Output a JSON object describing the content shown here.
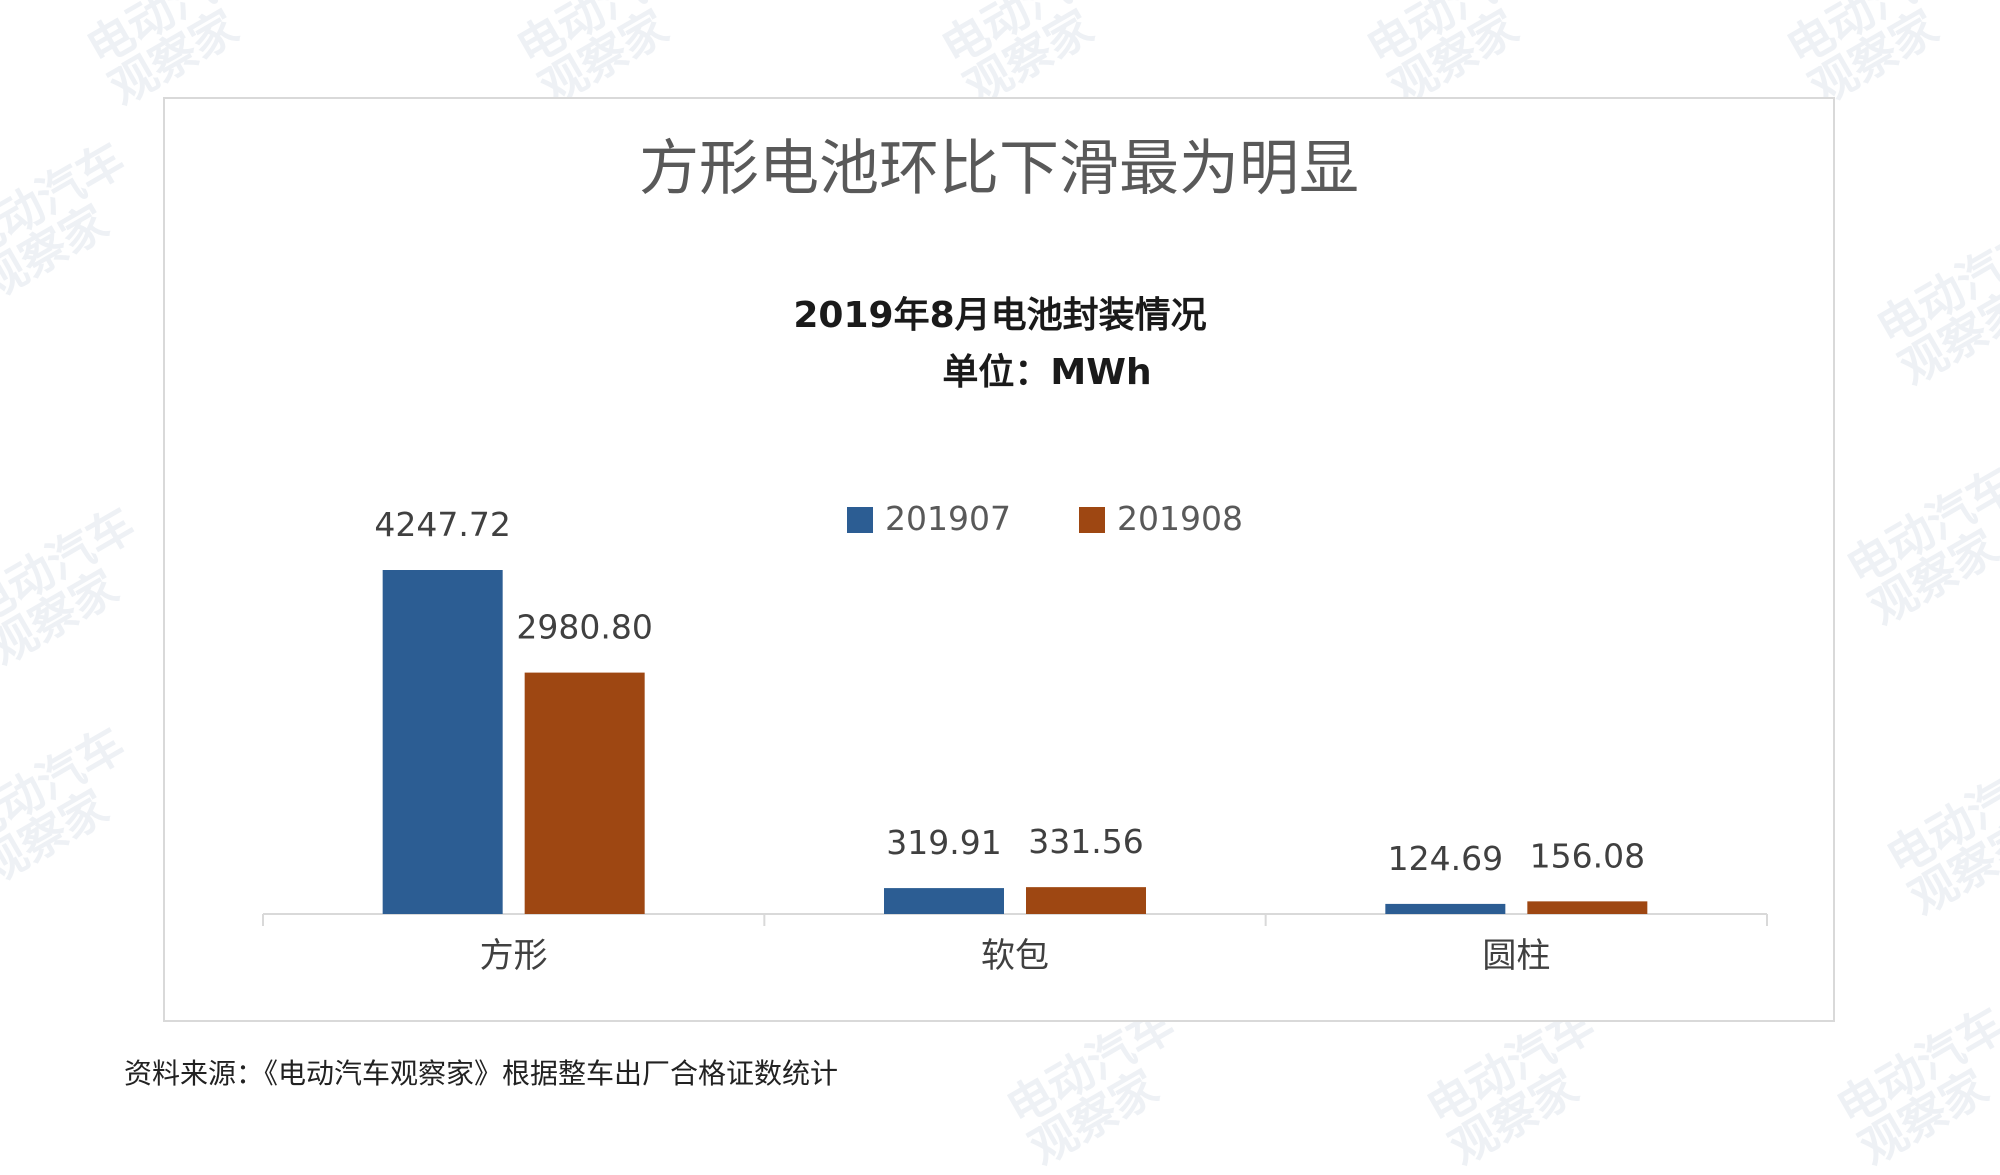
{
  "watermark": {
    "line1": "电动汽车",
    "line2": "观察家"
  },
  "footer": {
    "source": "资料来源：《电动汽车观察家》根据整车出厂合格证数统计"
  },
  "chart_data": {
    "type": "bar",
    "title": "方形电池环比下滑最为明显",
    "subtitle": "2019年8月电池封装情况",
    "unit_label": "单位：MWh",
    "categories": [
      "方形",
      "软包",
      "圆柱"
    ],
    "series": [
      {
        "name": "201907",
        "color": "#2c5d93",
        "values": [
          4247.72,
          319.91,
          124.69
        ],
        "labels": [
          "4247.72",
          "319.91",
          "124.69"
        ]
      },
      {
        "name": "201908",
        "color": "#9e4712",
        "values": [
          2980.8,
          331.56,
          156.08
        ],
        "labels": [
          "2980.80",
          "331.56",
          "156.08"
        ]
      }
    ],
    "xlabel": "",
    "ylabel": "",
    "ylim": [
      0,
      4300
    ],
    "grid": false,
    "y_axis_visible": false,
    "legend_position": "top-center"
  }
}
